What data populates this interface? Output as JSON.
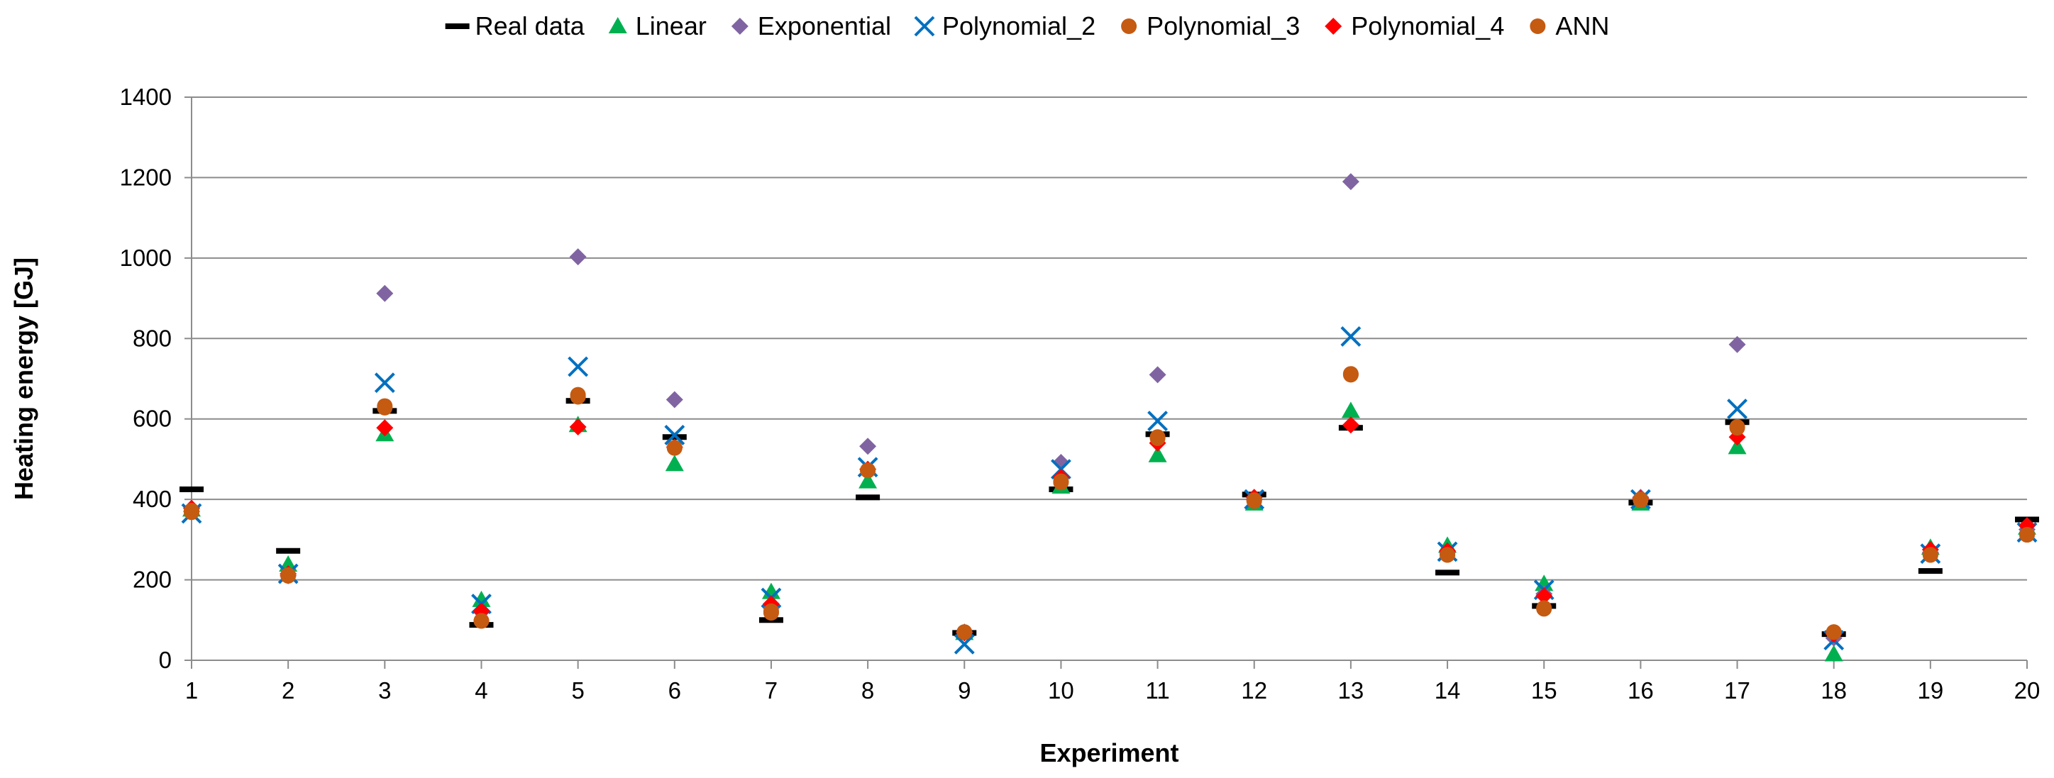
{
  "chart_data": {
    "type": "scatter",
    "title": "",
    "xlabel": "Experiment",
    "ylabel": "Heating energy [GJ]",
    "categories": [
      "1",
      "2",
      "3",
      "4",
      "5",
      "6",
      "7",
      "8",
      "9",
      "10",
      "11",
      "12",
      "13",
      "14",
      "15",
      "16",
      "17",
      "18",
      "19",
      "20"
    ],
    "ylim": [
      0,
      1400
    ],
    "yticks": [
      0,
      200,
      400,
      600,
      800,
      1000,
      1200,
      1400
    ],
    "grid": true,
    "legend_position": "top",
    "series": [
      {
        "name": "Real data",
        "marker": "dash",
        "color": "#000000",
        "values": [
          425,
          272,
          620,
          88,
          645,
          555,
          100,
          405,
          68,
          425,
          562,
          412,
          578,
          218,
          135,
          392,
          592,
          65,
          222,
          350
        ]
      },
      {
        "name": "Linear",
        "marker": "triangle",
        "color": "#00b050",
        "values": [
          375,
          238,
          562,
          150,
          585,
          488,
          170,
          445,
          68,
          432,
          510,
          390,
          620,
          285,
          190,
          390,
          530,
          15,
          280,
          330
        ]
      },
      {
        "name": "Exponential",
        "marker": "diamond",
        "color": "#8064a2",
        "values": [
          370,
          210,
          912,
          120,
          1003,
          648,
          130,
          532,
          70,
          492,
          710,
          400,
          1190,
          268,
          165,
          405,
          785,
          55,
          268,
          325
        ]
      },
      {
        "name": "Polynomial_2",
        "marker": "x",
        "color": "#0070c0",
        "values": [
          365,
          215,
          690,
          140,
          730,
          560,
          155,
          480,
          40,
          475,
          595,
          400,
          805,
          270,
          175,
          400,
          625,
          50,
          265,
          318
        ]
      },
      {
        "name": "Polynomial_3",
        "marker": "circle",
        "color": "#c55a11",
        "values": [
          372,
          212,
          632,
          98,
          660,
          528,
          122,
          472,
          70,
          445,
          555,
          398,
          712,
          262,
          128,
          400,
          580,
          70,
          262,
          312
        ]
      },
      {
        "name": "Polynomial_4",
        "marker": "diamond",
        "color": "#ff0000",
        "values": [
          378,
          215,
          578,
          122,
          580,
          530,
          140,
          475,
          68,
          455,
          540,
          405,
          585,
          272,
          160,
          402,
          555,
          65,
          275,
          335
        ]
      },
      {
        "name": "ANN",
        "marker": "circle",
        "color": "#c55a11",
        "values": [
          368,
          210,
          628,
          98,
          655,
          528,
          118,
          472,
          70,
          442,
          552,
          396,
          710,
          262,
          130,
          398,
          578,
          70,
          262,
          312
        ]
      }
    ]
  }
}
